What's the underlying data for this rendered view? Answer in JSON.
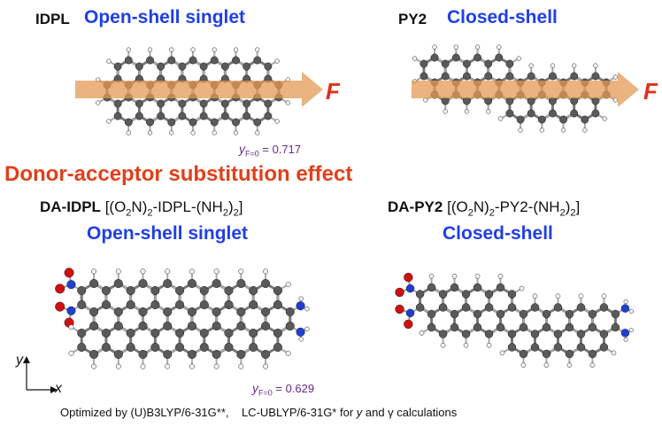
{
  "top": {
    "idpl": {
      "label": "IDPL",
      "state": "Open-shell singlet",
      "field": "F",
      "y_value": [
        "y",
        "F=0",
        " = 0.717"
      ]
    },
    "py2": {
      "label": "PY2",
      "state": "Closed-shell",
      "field": "F"
    }
  },
  "section_title": "Donor-acceptor substitution effect",
  "bottom": {
    "da_idpl": {
      "label": "DA-IDPL",
      "formula": [
        "[(O",
        "2",
        "N)",
        "2",
        "-IDPL-(NH",
        "2",
        ")",
        "2",
        "]"
      ],
      "state": "Open-shell singlet",
      "y_value": [
        "y",
        "F=0",
        " = 0.629"
      ]
    },
    "da_py2": {
      "label": "DA-PY2",
      "formula": [
        "[(O",
        "2",
        "N)",
        "2",
        "-PY2-(NH",
        "2",
        ")",
        "2",
        "]"
      ],
      "state": "Closed-shell"
    }
  },
  "axes": {
    "y": "y",
    "x": "x"
  },
  "footer": [
    "Optimized by (U)B3LYP/6-31G**,    LC-UBLYP/6-31G* for ",
    "y",
    " and γ calculations"
  ]
}
